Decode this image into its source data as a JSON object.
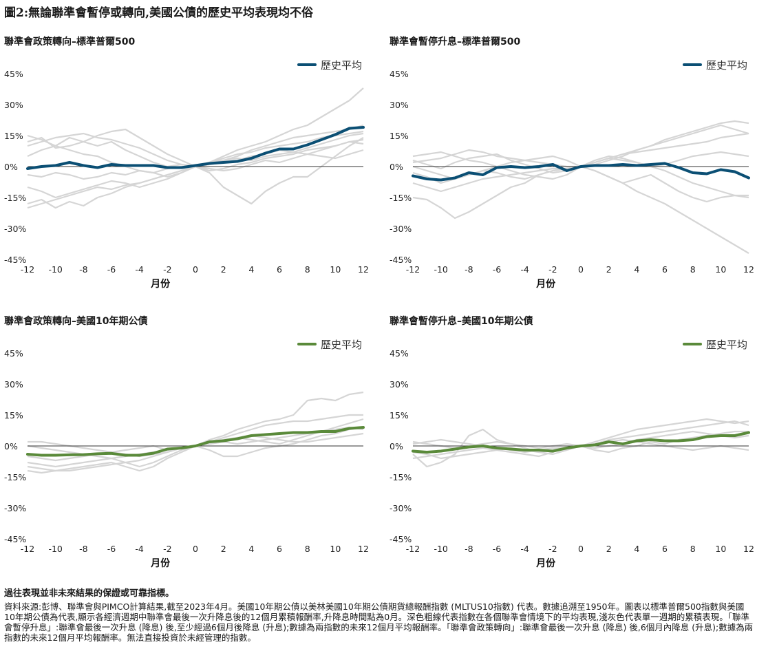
{
  "title": "圖2:無論聯準會暫停或轉向,美國公債的歷史平均表現均不俗",
  "legend_label": "歷史平均",
  "xlabel": "月份",
  "colors": {
    "sp500": "#0b4f74",
    "treasury": "#5a8a3a",
    "grey": "#d5d5d5",
    "zero": "#333333"
  },
  "chart_data": [
    {
      "type": "line",
      "title": "聯準會政策轉向–標準普爾500",
      "xlabel": "月份",
      "x": [
        -12,
        -11,
        -10,
        -9,
        -8,
        -7,
        -6,
        -5,
        -4,
        -3,
        -2,
        -1,
        0,
        1,
        2,
        3,
        4,
        5,
        6,
        7,
        8,
        9,
        10,
        11,
        12
      ],
      "xticks": [
        "-12",
        "-10",
        "-8",
        "-6",
        "-4",
        "-2",
        "0",
        "2",
        "4",
        "6",
        "8",
        "10",
        "12"
      ],
      "yticks": [
        "45%",
        "30%",
        "15%",
        "0%",
        "-15%",
        "-30%",
        "-45%"
      ],
      "ylim": [
        -45,
        45
      ],
      "legend": "top-right",
      "series": [
        {
          "name": "歷史平均",
          "values": [
            -1,
            0,
            0.5,
            2,
            0.5,
            -0.5,
            1,
            0.5,
            0.5,
            0.5,
            -0.5,
            -0.5,
            0.5,
            1.5,
            2,
            2.5,
            4,
            6.5,
            8.5,
            8.5,
            10.5,
            13,
            15.5,
            18.5,
            19
          ]
        }
      ],
      "background_series": [
        [
          5,
          8,
          10,
          14,
          12,
          10,
          12,
          8,
          5,
          2,
          0,
          1,
          0,
          2,
          5,
          8,
          10,
          12,
          15,
          18,
          20,
          24,
          28,
          32,
          38
        ],
        [
          10,
          12,
          14,
          15,
          16,
          14,
          13,
          11,
          9,
          6,
          3,
          1,
          0,
          -3,
          -10,
          -14,
          -18,
          -12,
          -8,
          -5,
          -5,
          0,
          5,
          10,
          14
        ],
        [
          -18,
          -16,
          -20,
          -17,
          -19,
          -15,
          -13,
          -10,
          -8,
          -6,
          -4,
          -2,
          0,
          1,
          3,
          5,
          8,
          10,
          12,
          14,
          15,
          16,
          17,
          18,
          20
        ],
        [
          -4,
          -5,
          -3,
          -4,
          -6,
          -5,
          -3,
          -4,
          -2,
          -3,
          -1,
          0,
          0,
          2,
          4,
          6,
          7,
          9,
          10,
          11,
          12,
          14,
          15,
          16,
          17
        ],
        [
          12,
          14,
          9,
          10,
          12,
          15,
          17,
          18,
          14,
          10,
          6,
          3,
          0,
          -1,
          -2,
          -1,
          1,
          3,
          2,
          4,
          6,
          8,
          10,
          12,
          13
        ],
        [
          15,
          13,
          10,
          8,
          6,
          5,
          2,
          0,
          -2,
          -3,
          -5,
          -3,
          0,
          -2,
          -1,
          1,
          2,
          4,
          5,
          6,
          8,
          9,
          10,
          12,
          11
        ],
        [
          -10,
          -12,
          -15,
          -13,
          -11,
          -9,
          -7,
          -8,
          -10,
          -8,
          -6,
          -3,
          0,
          2,
          3,
          4,
          3,
          5,
          6,
          7,
          9,
          11,
          13,
          15,
          16
        ],
        [
          -20,
          -18,
          -16,
          -14,
          -12,
          -10,
          -11,
          -9,
          -8,
          -6,
          -4,
          -2,
          0,
          1,
          2,
          3,
          5,
          6,
          8,
          7,
          6,
          5,
          4,
          6,
          8
        ]
      ]
    },
    {
      "type": "line",
      "title": "聯準會暫停升息–標準普爾500",
      "xlabel": "月份",
      "x": [
        -12,
        -11,
        -10,
        -9,
        -8,
        -7,
        -6,
        -5,
        -4,
        -3,
        -2,
        -1,
        0,
        1,
        2,
        3,
        4,
        5,
        6,
        7,
        8,
        9,
        10,
        11,
        12
      ],
      "xticks": [
        "-12",
        "-10",
        "-8",
        "-6",
        "-4",
        "-2",
        "0",
        "2",
        "4",
        "6",
        "8",
        "10",
        "12"
      ],
      "yticks": [
        "45%",
        "30%",
        "15%",
        "0%",
        "-15%",
        "-30%",
        "-45%"
      ],
      "ylim": [
        -45,
        45
      ],
      "legend": "top-right",
      "series": [
        {
          "name": "歷史平均",
          "values": [
            -4.5,
            -6,
            -6.5,
            -5.5,
            -3,
            -4,
            -0.5,
            0,
            -0.5,
            0,
            1,
            -2,
            0,
            0.5,
            0.5,
            1,
            0.5,
            1,
            1.5,
            -0.5,
            -3,
            -3.5,
            -1.5,
            -2.5,
            -5.5
          ]
        }
      ],
      "background_series": [
        [
          2,
          3,
          4,
          6,
          8,
          7,
          5,
          4,
          3,
          2,
          1,
          0,
          0,
          2,
          4,
          6,
          8,
          10,
          13,
          15,
          17,
          19,
          21,
          22,
          21
        ],
        [
          0,
          -2,
          -4,
          -6,
          -4,
          -2,
          0,
          2,
          3,
          4,
          5,
          3,
          0,
          -2,
          -5,
          -8,
          -12,
          -15,
          -18,
          -22,
          -26,
          -30,
          -34,
          -38,
          -42
        ],
        [
          -15,
          -16,
          -20,
          -25,
          -22,
          -18,
          -14,
          -10,
          -8,
          -4,
          -2,
          -1,
          0,
          1,
          3,
          5,
          8,
          10,
          12,
          14,
          16,
          18,
          20,
          18,
          16
        ],
        [
          5,
          6,
          7,
          5,
          3,
          2,
          0,
          -2,
          -4,
          -5,
          -6,
          -4,
          0,
          2,
          4,
          3,
          2,
          0,
          -2,
          -5,
          -8,
          -10,
          -12,
          -14,
          -15
        ],
        [
          -8,
          -10,
          -12,
          -10,
          -8,
          -6,
          -5,
          -4,
          -3,
          -2,
          -1,
          -1,
          0,
          2,
          4,
          6,
          7,
          8,
          9,
          10,
          11,
          12,
          14,
          15,
          16
        ],
        [
          3,
          1,
          -1,
          2,
          4,
          5,
          6,
          3,
          1,
          -1,
          -3,
          -2,
          0,
          -2,
          -5,
          -8,
          -6,
          -4,
          -8,
          -12,
          -15,
          -17,
          -15,
          -14,
          -14
        ],
        [
          -3,
          -5,
          -8,
          -6,
          -4,
          -2,
          -3,
          -5,
          -6,
          -4,
          -2,
          -1,
          0,
          3,
          5,
          4,
          2,
          0,
          1,
          3,
          5,
          6,
          7,
          6,
          5
        ]
      ]
    },
    {
      "type": "line",
      "title": "聯準會政策轉向–美國10年期公債",
      "xlabel": "月份",
      "x": [
        -12,
        -11,
        -10,
        -9,
        -8,
        -7,
        -6,
        -5,
        -4,
        -3,
        -2,
        -1,
        0,
        1,
        2,
        3,
        4,
        5,
        6,
        7,
        8,
        9,
        10,
        11,
        12
      ],
      "xticks": [
        "-12",
        "-10",
        "-8",
        "-6",
        "-4",
        "-2",
        "0",
        "2",
        "4",
        "6",
        "8",
        "10",
        "12"
      ],
      "yticks": [
        "45%",
        "30%",
        "15%",
        "0%",
        "-15%",
        "-30%",
        "-45%"
      ],
      "ylim": [
        -45,
        45
      ],
      "legend": "top-right",
      "series": [
        {
          "name": "歷史平均",
          "values": [
            -4,
            -4.5,
            -4.5,
            -4.3,
            -4.2,
            -3.8,
            -3.6,
            -4.5,
            -4.5,
            -3.5,
            -1.5,
            -1,
            0,
            2,
            2.5,
            3.5,
            5,
            5.5,
            6,
            6.5,
            6.5,
            7,
            7,
            8.5,
            9
          ]
        }
      ],
      "background_series": [
        [
          -12,
          -13,
          -12,
          -12,
          -11,
          -10,
          -9,
          -8,
          -7,
          -5,
          -3,
          -1,
          0,
          3,
          5,
          8,
          10,
          12,
          13,
          15,
          22,
          23,
          22,
          25,
          26
        ],
        [
          -8,
          -9,
          -10,
          -9,
          -8,
          -7,
          -6,
          -8,
          -10,
          -8,
          -5,
          -2,
          0,
          2,
          4,
          6,
          8,
          10,
          11,
          12,
          12,
          13,
          14,
          15,
          15
        ],
        [
          2,
          2,
          1,
          0,
          -1,
          -2,
          -3,
          -2,
          -1,
          0,
          -2,
          -1,
          0,
          -2,
          -5,
          -5,
          -3,
          -1,
          0,
          1,
          3,
          5,
          6,
          8,
          9
        ],
        [
          -5,
          -6,
          -7,
          -6,
          -5,
          -4,
          -3,
          -4,
          -5,
          -4,
          -3,
          -1,
          0,
          1,
          2,
          4,
          3,
          2,
          1,
          3,
          5,
          7,
          9,
          11,
          13
        ],
        [
          0,
          -1,
          -2,
          -3,
          -4,
          -5,
          -6,
          -5,
          -4,
          -3,
          -2,
          -1,
          0,
          2,
          3,
          4,
          5,
          4,
          3,
          2,
          2,
          3,
          4,
          5,
          6
        ],
        [
          -10,
          -11,
          -12,
          -11,
          -10,
          -9,
          -8,
          -10,
          -12,
          -10,
          -6,
          -3,
          0,
          1,
          2,
          1,
          2,
          3,
          4,
          5,
          6,
          7,
          8,
          9,
          8
        ]
      ]
    },
    {
      "type": "line",
      "title": "聯準會暫停升息–美國10年期公債",
      "xlabel": "月份",
      "x": [
        -12,
        -11,
        -10,
        -9,
        -8,
        -7,
        -6,
        -5,
        -4,
        -3,
        -2,
        -1,
        0,
        1,
        2,
        3,
        4,
        5,
        6,
        7,
        8,
        9,
        10,
        11,
        12
      ],
      "xticks": [
        "-12",
        "-10",
        "-8",
        "-6",
        "-4",
        "-2",
        "0",
        "2",
        "4",
        "6",
        "8",
        "10",
        "12"
      ],
      "yticks": [
        "45%",
        "30%",
        "15%",
        "0%",
        "-15%",
        "-30%",
        "-45%"
      ],
      "ylim": [
        -45,
        45
      ],
      "legend": "top-right",
      "series": [
        {
          "name": "歷史平均",
          "values": [
            -2.5,
            -3,
            -2.5,
            -1.5,
            -0.5,
            0,
            -1,
            -1.5,
            -2,
            -2,
            -2.5,
            -1,
            0,
            0.5,
            2,
            1,
            2.5,
            3,
            2.5,
            2.5,
            3,
            4.5,
            5,
            5,
            6.5
          ]
        }
      ],
      "background_series": [
        [
          1,
          2,
          3,
          2,
          1,
          0,
          -1,
          -2,
          -3,
          -2,
          -1,
          -1,
          0,
          2,
          4,
          6,
          8,
          9,
          10,
          11,
          12,
          13,
          12,
          11,
          12
        ],
        [
          -4,
          -10,
          -8,
          -4,
          5,
          8,
          3,
          1,
          -1,
          -3,
          -4,
          -2,
          0,
          1,
          3,
          4,
          5,
          6,
          7,
          8,
          9,
          10,
          11,
          12,
          10
        ],
        [
          -6,
          -5,
          -4,
          -3,
          -2,
          -1,
          -2,
          -3,
          -4,
          -5,
          -3,
          -1,
          0,
          -2,
          -3,
          -1,
          0,
          2,
          1,
          3,
          4,
          5,
          6,
          7,
          7
        ],
        [
          2,
          1,
          0,
          -1,
          0,
          1,
          2,
          1,
          0,
          -1,
          0,
          1,
          0,
          1,
          2,
          3,
          2,
          1,
          0,
          -1,
          -2,
          -1,
          0,
          -1,
          -2
        ],
        [
          -3,
          -4,
          -6,
          -5,
          -4,
          -3,
          -2,
          -1,
          -2,
          -3,
          -2,
          -1,
          0,
          -1,
          0,
          1,
          3,
          4,
          5,
          6,
          7,
          6,
          5,
          4,
          5
        ]
      ]
    }
  ],
  "notes": {
    "disclaimer": "過往表現並非未來結果的保證或可靠指標。",
    "text": "資料來源:彭博、聯準會與PIMCO計算結果,截至2023年4月。美國10年期公債以美林美國10年期公債期貨總報酬指數 (MLTUS10指數) 代表。數據追溯至1950年。圖表以標準普爾500指數與美國10年期公債為代表,顯示各經濟週期中聯準會最後一次升降息後的12個月累積報酬率,升降息時間點為0月。深色粗線代表指數在各個聯準會情境下的平均表現,淺灰色代表單一週期的累積表現。「聯準會暫停升息」:聯準會最後一次升息 (降息) 後,至少經過6個月後降息 (升息);數據為兩指數的未來12個月平均報酬率。「聯準會政策轉向」:聯準會最後一次升息 (降息) 後,6個月內降息 (升息);數據為兩指數的未來12個月平均報酬率。無法直接投資於未經管理的指數。"
  }
}
